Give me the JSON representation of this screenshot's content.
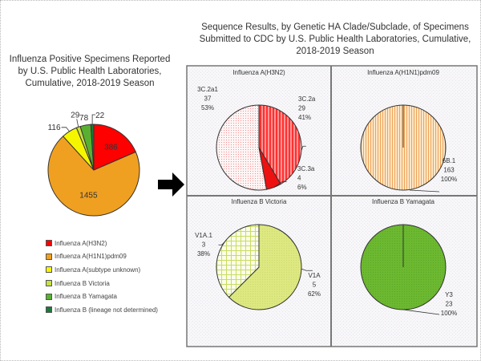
{
  "chart_data": [
    {
      "type": "pie",
      "title": "Influenza Positive Specimens Reported by U.S. Public Health Laboratories, Cumulative, 2018-2019 Season",
      "legend_position": "bottom",
      "slices": [
        {
          "label": "Influenza A(H3N2)",
          "value": 386,
          "color": "#ff0000"
        },
        {
          "label": "Influenza A(H1N1)pdm09",
          "value": 1455,
          "color": "#f0a020"
        },
        {
          "label": "Influenza A(subtype unknown)",
          "value": 116,
          "color": "#f5f500"
        },
        {
          "label": "Influenza B Victoria",
          "value": 29,
          "color": "#c8e040"
        },
        {
          "label": "Influenza B Yamagata",
          "value": 78,
          "color": "#58b030"
        },
        {
          "label": "Influenza B (lineage not determined)",
          "value": 22,
          "color": "#1a7a3a"
        }
      ]
    },
    {
      "type": "pie",
      "title": "Influenza A(H3N2)",
      "slices": [
        {
          "label": "3C.2a",
          "value": 29,
          "percent": "41%",
          "color": "#ff4040",
          "pattern": "vstripe"
        },
        {
          "label": "3C.3a",
          "value": 4,
          "percent": "6%",
          "color": "#ee1111",
          "pattern": "solid"
        },
        {
          "label": "3C.2a1",
          "value": 37,
          "percent": "53%",
          "color": "#ffd0d0",
          "pattern": "dots"
        }
      ]
    },
    {
      "type": "pie",
      "title": "Influenza A(H1N1)pdm09",
      "slices": [
        {
          "label": "6B.1",
          "value": 163,
          "percent": "100%",
          "color": "#f5c890",
          "pattern": "vstripe"
        }
      ]
    },
    {
      "type": "pie",
      "title": "Influenza B Victoria",
      "slices": [
        {
          "label": "V1A",
          "value": 5,
          "percent": "62%",
          "color": "#dde880",
          "pattern": "solid"
        },
        {
          "label": "V1A.1",
          "value": 3,
          "percent": "38%",
          "color": "#f4f8d0",
          "pattern": "grid"
        }
      ]
    },
    {
      "type": "pie",
      "title": "Influenza B Yamagata",
      "slices": [
        {
          "label": "Y3",
          "value": 23,
          "percent": "100%",
          "color": "#6cb830",
          "pattern": "solid"
        }
      ]
    }
  ],
  "left_title": "Influenza Positive Specimens Reported by U.S. Public Health Laboratories, Cumulative, 2018-2019 Season",
  "right_title": "Sequence Results, by Genetic HA Clade/Subclade, of Specimens Submitted to CDC by U.S. Public Health Laboratories, Cumulative, 2018-2019 Season",
  "legend": [
    "Influenza A(H3N2)",
    "Influenza A(H1N1)pdm09",
    "Influenza A(subtype unknown)",
    "Influenza B Victoria",
    "Influenza B Yamagata",
    "Influenza B (lineage not determined)"
  ],
  "arrow_icon": "right-arrow"
}
